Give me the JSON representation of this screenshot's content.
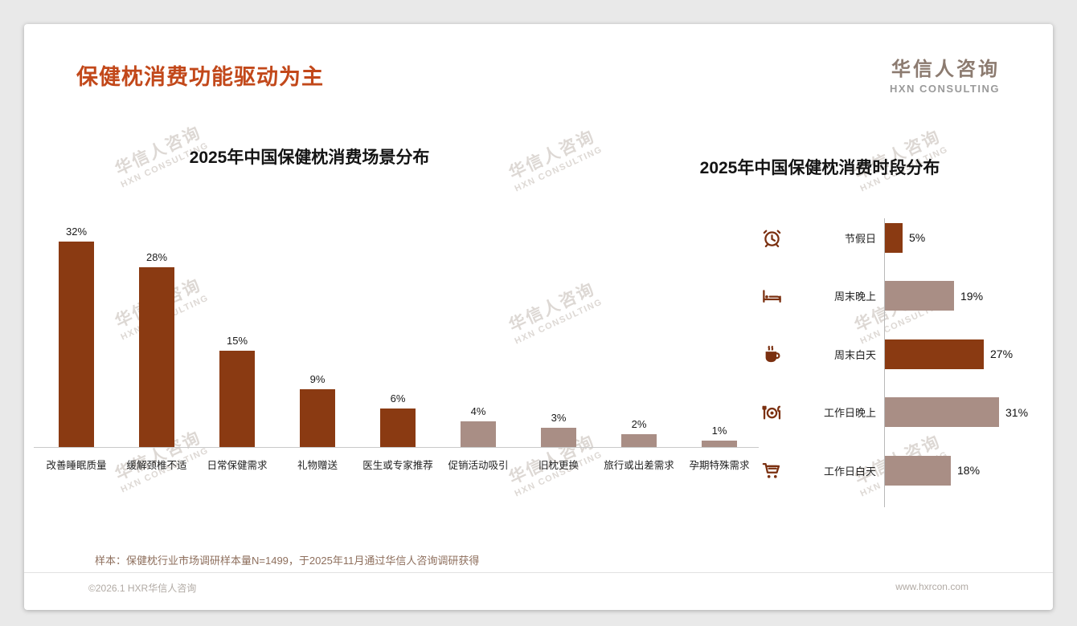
{
  "header": {
    "title": "保健枕消费功能驱动为主",
    "logo_name": "华信人咨询",
    "logo_sub": "HXN CONSULTING"
  },
  "watermark": {
    "line1": "华信人咨询",
    "line2": "HXN CONSULTING"
  },
  "colors": {
    "title": "#c2481a",
    "dark_bar": "#8a3a12",
    "light_bar": "#a98e85",
    "icon": "#7b3010",
    "axis": "#c9c9c9"
  },
  "chart_data": [
    {
      "type": "bar",
      "orientation": "vertical",
      "title": "2025年中国保健枕消费场景分布",
      "categories": [
        "改善睡眠质量",
        "缓解颈椎不适",
        "日常保健需求",
        "礼物赠送",
        "医生或专家推荐",
        "促销活动吸引",
        "旧枕更换",
        "旅行或出差需求",
        "孕期特殊需求"
      ],
      "values": [
        32,
        28,
        15,
        9,
        6,
        4,
        3,
        2,
        1
      ],
      "data_labels": [
        "32%",
        "28%",
        "15%",
        "9%",
        "6%",
        "4%",
        "3%",
        "2%",
        "1%"
      ],
      "bar_colors": [
        "dark",
        "dark",
        "dark",
        "dark",
        "dark",
        "light",
        "light",
        "light",
        "light"
      ],
      "unit": "%",
      "ylim": [
        0,
        35
      ],
      "grid": false,
      "legend": "none"
    },
    {
      "type": "bar",
      "orientation": "horizontal",
      "title": "2025年中国保健枕消费时段分布",
      "categories": [
        "节假日",
        "周末晚上",
        "周末白天",
        "工作日晚上",
        "工作日白天"
      ],
      "values": [
        5,
        19,
        27,
        31,
        18
      ],
      "data_labels": [
        "5%",
        "19%",
        "27%",
        "31%",
        "18%"
      ],
      "bar_colors": [
        "dark",
        "light",
        "dark",
        "light",
        "light"
      ],
      "icons": [
        "alarm-clock",
        "bed",
        "coffee",
        "dining",
        "cart"
      ],
      "unit": "%",
      "xlim": [
        0,
        35
      ],
      "grid": false,
      "legend": "none"
    }
  ],
  "footnote": "样本：保健枕行业市场调研样本量N=1499，于2025年11月通过华信人咨询调研获得",
  "footer": {
    "left": "©2026.1 HXR华信人咨询",
    "right": "www.hxrcon.com"
  }
}
